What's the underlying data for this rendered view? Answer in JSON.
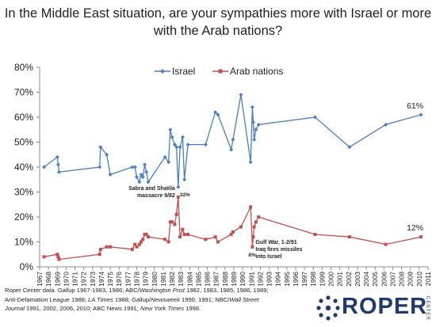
{
  "title": "In the Middle East situation, are your sympathies more with Israel or more with the Arab nations?",
  "colors": {
    "israel": "#4a7fc0",
    "arab": "#c0504d",
    "axis": "#8c8c8c",
    "logo": "#1f3a6b"
  },
  "chart_data": {
    "type": "line",
    "title": "In the Middle East situation, are your sympathies more with Israel or more with the Arab nations?",
    "xlabel": "",
    "ylabel": "",
    "xlim": [
      1967,
      2011
    ],
    "ylim": [
      0,
      80
    ],
    "y_ticks": [
      "0%",
      "10%",
      "20%",
      "30%",
      "40%",
      "50%",
      "60%",
      "70%",
      "80%"
    ],
    "x_ticks": [
      "1967",
      "1968",
      "1969",
      "1970",
      "1971",
      "1972",
      "1973",
      "1974",
      "1975",
      "1976",
      "1977",
      "1978",
      "1979",
      "1980",
      "1981",
      "1982",
      "1983",
      "1984",
      "1985",
      "1986",
      "1987",
      "1988",
      "1989",
      "1990",
      "1991",
      "1992",
      "1993",
      "1994",
      "1995",
      "1996",
      "1997",
      "1998",
      "1999",
      "2000",
      "2001",
      "2002",
      "2003",
      "2004",
      "2005",
      "2006",
      "2007",
      "2008",
      "2009",
      "2010",
      "2011"
    ],
    "grid": false,
    "legend_position": "top",
    "series": [
      {
        "name": "Israel",
        "marker": "diamond",
        "points": [
          [
            1967.5,
            40
          ],
          [
            1969.0,
            44
          ],
          [
            1969.1,
            41
          ],
          [
            1969.2,
            38
          ],
          [
            1973.8,
            40
          ],
          [
            1973.9,
            48
          ],
          [
            1974.6,
            45
          ],
          [
            1975.0,
            37
          ],
          [
            1977.5,
            40
          ],
          [
            1977.8,
            40
          ],
          [
            1978.0,
            36
          ],
          [
            1978.3,
            34
          ],
          [
            1978.5,
            37
          ],
          [
            1978.7,
            36
          ],
          [
            1978.9,
            41
          ],
          [
            1979.1,
            38
          ],
          [
            1979.3,
            34
          ],
          [
            1981.2,
            44
          ],
          [
            1981.6,
            42
          ],
          [
            1981.8,
            55
          ],
          [
            1982.0,
            52
          ],
          [
            1982.3,
            49
          ],
          [
            1982.5,
            48
          ],
          [
            1982.7,
            32
          ],
          [
            1982.9,
            48
          ],
          [
            1983.2,
            52
          ],
          [
            1983.4,
            35
          ],
          [
            1983.8,
            49
          ],
          [
            1985.8,
            49
          ],
          [
            1986.9,
            62
          ],
          [
            1987.2,
            61
          ],
          [
            1988.7,
            47
          ],
          [
            1988.9,
            51
          ],
          [
            1989.8,
            69
          ],
          [
            1990.9,
            42
          ],
          [
            1991.1,
            64
          ],
          [
            1991.2,
            58
          ],
          [
            1991.3,
            51
          ],
          [
            1991.5,
            55
          ],
          [
            1991.8,
            57
          ],
          [
            1998.2,
            60
          ],
          [
            2002.1,
            48
          ],
          [
            2006.2,
            57
          ],
          [
            2010.2,
            61
          ]
        ]
      },
      {
        "name": "Arab nations",
        "marker": "square",
        "points": [
          [
            1967.5,
            4
          ],
          [
            1969.0,
            5
          ],
          [
            1969.1,
            4
          ],
          [
            1969.2,
            3
          ],
          [
            1973.8,
            5
          ],
          [
            1973.9,
            7
          ],
          [
            1974.6,
            8
          ],
          [
            1975.0,
            8
          ],
          [
            1977.5,
            7
          ],
          [
            1977.8,
            9
          ],
          [
            1978.0,
            8
          ],
          [
            1978.3,
            9
          ],
          [
            1978.5,
            10
          ],
          [
            1978.7,
            11
          ],
          [
            1978.9,
            13
          ],
          [
            1979.1,
            13
          ],
          [
            1979.3,
            12
          ],
          [
            1981.2,
            11
          ],
          [
            1981.6,
            10
          ],
          [
            1981.8,
            18
          ],
          [
            1982.0,
            18
          ],
          [
            1982.3,
            17
          ],
          [
            1982.5,
            21
          ],
          [
            1982.7,
            28
          ],
          [
            1982.9,
            12
          ],
          [
            1983.2,
            15
          ],
          [
            1983.4,
            13
          ],
          [
            1983.8,
            13
          ],
          [
            1985.8,
            11
          ],
          [
            1986.9,
            12
          ],
          [
            1987.2,
            10
          ],
          [
            1988.7,
            13
          ],
          [
            1988.9,
            14
          ],
          [
            1989.8,
            16
          ],
          [
            1990.9,
            24
          ],
          [
            1991.1,
            8
          ],
          [
            1991.2,
            12
          ],
          [
            1991.3,
            16
          ],
          [
            1991.5,
            18
          ],
          [
            1991.8,
            20
          ],
          [
            1998.2,
            13
          ],
          [
            2002.1,
            12
          ],
          [
            2006.2,
            9
          ],
          [
            2010.2,
            12
          ]
        ]
      }
    ],
    "annotations": [
      {
        "text": "61%",
        "series": "Israel",
        "x": 2010.2,
        "y": 61
      },
      {
        "text": "12%",
        "series": "Arab nations",
        "x": 2010.2,
        "y": 12
      },
      {
        "text": "32%",
        "series": "Israel",
        "x": 1982.7,
        "y": 32
      },
      {
        "text": "Sabra and Shatila massacre 9/82",
        "series": "Israel",
        "x": 1982.7,
        "y": 32
      },
      {
        "text": "8%",
        "series": "Arab nations",
        "x": 1991.1,
        "y": 8
      },
      {
        "text": "Gulf War, 1-2/91 Iraq fires missiles into Israel",
        "series": "Arab nations",
        "x": 1991.1,
        "y": 8
      }
    ]
  },
  "source": {
    "line1_a": "Roper Center data. Gallup 1967-1983, 1986; ABC/",
    "line1_b": "Washington Post",
    "line1_c": " 1982, 1983, 1985, 1986, 1989;",
    "line2_a": "Anti-Defamation League 1988; ",
    "line2_b": "LA Times",
    "line2_c": " 1988; Gallup/",
    "line2_d": "Newsweek",
    "line2_e": " 1990, 1991; NBC/",
    "line2_f": "Wall Street",
    "line3_a": "Journal",
    "line3_b": " 1991, 2002, 2006, 2010; ABC News 1991; ",
    "line3_c": "New York Times",
    "line3_d": " 1998."
  },
  "logo": {
    "text": "ROPER",
    "vertical": "CENTER"
  }
}
